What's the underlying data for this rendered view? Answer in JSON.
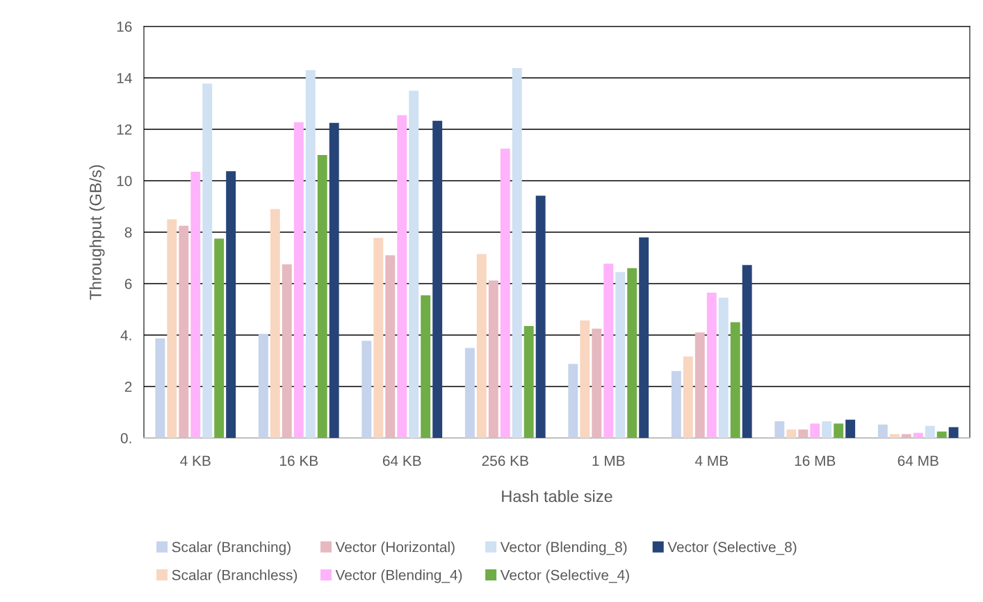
{
  "chart_data": {
    "type": "bar",
    "xlabel": "Hash table size",
    "ylabel": "Throughput (GB/s)",
    "categories": [
      "4 KB",
      "16 KB",
      "64 KB",
      "256 KB",
      "1 MB",
      "4 MB",
      "16 MB",
      "64 MB"
    ],
    "series": [
      {
        "name": "Scalar (Branching)",
        "color": "#c5d3ec",
        "values": [
          3.87,
          4.05,
          3.78,
          3.5,
          2.88,
          2.6,
          0.65,
          0.52
        ]
      },
      {
        "name": "Scalar (Branchless)",
        "color": "#f8d6bf",
        "values": [
          8.5,
          8.9,
          7.78,
          7.15,
          4.57,
          3.17,
          0.33,
          0.15
        ]
      },
      {
        "name": "Vector (Horizontal)",
        "color": "#e6b8c0",
        "values": [
          8.25,
          6.75,
          7.1,
          6.12,
          4.25,
          4.1,
          0.33,
          0.15
        ]
      },
      {
        "name": "Vector (Blending_4)",
        "color": "#ffb3fa",
        "values": [
          10.35,
          12.28,
          12.55,
          11.25,
          6.78,
          5.65,
          0.56,
          0.2
        ]
      },
      {
        "name": "Vector (Blending_8)",
        "color": "#cfe1f2",
        "values": [
          13.78,
          14.3,
          13.5,
          14.38,
          6.45,
          5.45,
          0.65,
          0.47
        ]
      },
      {
        "name": "Vector (Selective_4)",
        "color": "#70ad47",
        "values": [
          7.75,
          11.0,
          5.55,
          4.35,
          6.6,
          4.5,
          0.56,
          0.25
        ]
      },
      {
        "name": "Vector (Selective_8)",
        "color": "#264478",
        "values": [
          10.37,
          12.25,
          12.33,
          9.42,
          7.8,
          6.72,
          0.71,
          0.42
        ]
      }
    ],
    "ylim": [
      0,
      16
    ],
    "yticks": [
      {
        "value": 0,
        "label": "0."
      },
      2,
      {
        "value": 4,
        "label": "4."
      },
      6,
      8,
      10,
      12,
      14,
      16
    ],
    "grid": "y",
    "legend": "bottom"
  }
}
